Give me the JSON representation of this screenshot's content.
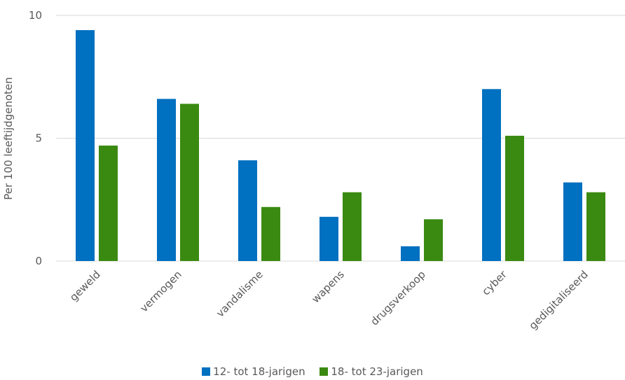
{
  "chart_data": {
    "type": "bar",
    "title": "",
    "xlabel": "",
    "ylabel": "Per 100 leeftijdgenoten",
    "ylim": [
      0,
      10
    ],
    "yticks": [
      "0",
      "5",
      "10"
    ],
    "categories": [
      "geweld",
      "vermogen",
      "vandalisme",
      "wapens",
      "drugsverkoop",
      "cyber",
      "gedigitaliseerd"
    ],
    "series": [
      {
        "name": "12- tot 18-jarigen",
        "color": "#0070C0",
        "values": [
          9.4,
          6.6,
          4.1,
          1.8,
          0.6,
          7.0,
          3.2
        ]
      },
      {
        "name": "18- tot 23-jarigen",
        "color": "#3A8A11",
        "values": [
          4.7,
          6.4,
          2.2,
          2.8,
          1.7,
          5.1,
          2.8
        ]
      }
    ],
    "grid": true,
    "legend": "bottom"
  }
}
